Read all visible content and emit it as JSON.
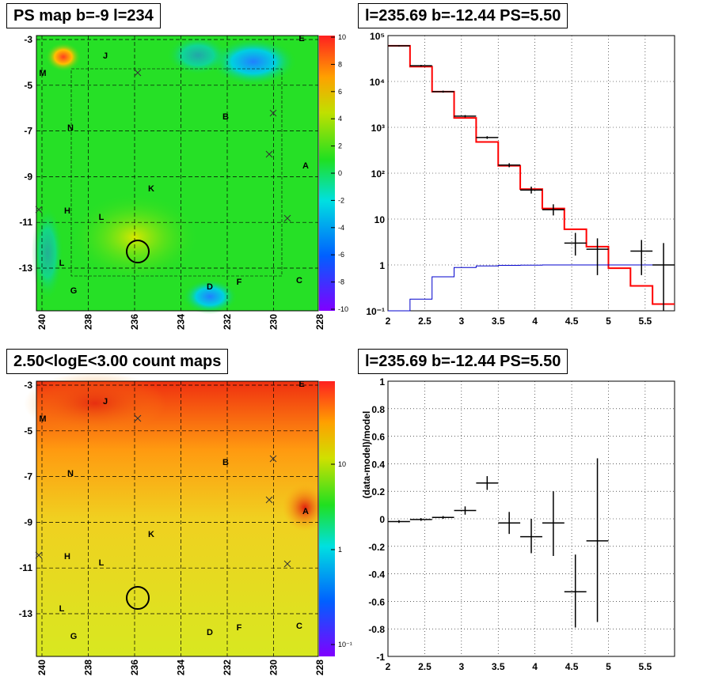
{
  "panels": {
    "tl_title": "PS map b=-9 l=234",
    "tr_title": "l=235.69 b=-12.44 PS=5.50",
    "bl_title": "2.50<logE<3.00 count maps",
    "br_title": "l=235.69 b=-12.44 PS=5.50"
  },
  "maps": {
    "x_ticks": [
      "240",
      "238",
      "236",
      "234",
      "232",
      "230",
      "228"
    ],
    "y_ticks": [
      "-3",
      "-5",
      "-7",
      "-9",
      "-11",
      "-13"
    ],
    "source_labels": [
      "E",
      "J",
      "M",
      "B",
      "N",
      "A",
      "K",
      "H",
      "L",
      "L",
      "G",
      "D",
      "F",
      "C"
    ],
    "ps_colorbar_ticks": [
      "10",
      "8",
      "6",
      "4",
      "2",
      "0",
      "-2",
      "-4",
      "-6",
      "-8",
      "-10"
    ],
    "count_colorbar_ticks": [
      "10",
      "1",
      "10⁻¹"
    ],
    "colors": {
      "ps_background": "#22dd22",
      "count_background": "#eedd22",
      "circle": "#000000"
    }
  },
  "chart_data": [
    {
      "type": "line",
      "title": "l=235.69 b=-12.44 PS=5.50",
      "xlim": [
        2,
        5.9
      ],
      "ylim": [
        0.1,
        100000
      ],
      "yscale": "log",
      "x_ticks": [
        "2",
        "2.5",
        "3",
        "3.5",
        "4",
        "4.5",
        "5",
        "5.5"
      ],
      "y_ticks": [
        "10⁵",
        "10⁴",
        "10³",
        "10²",
        "10",
        "1",
        "10⁻¹"
      ],
      "series": [
        {
          "color": "#ff0000",
          "kind": "step",
          "edges": [
            2,
            2.3,
            2.6,
            2.9,
            3.2,
            3.5,
            3.8,
            4.1,
            4.4,
            4.7,
            5.0,
            5.3,
            5.6,
            5.9
          ],
          "values": [
            60000,
            21000,
            6000,
            1600,
            480,
            145,
            45,
            17,
            6,
            2.5,
            0.85,
            0.35,
            0.14
          ]
        },
        {
          "color": "#0000cc",
          "kind": "step",
          "edges": [
            2,
            2.3,
            2.6,
            2.9,
            3.2,
            3.5,
            3.8,
            4.1,
            4.4,
            4.7,
            5.0,
            5.3,
            5.6,
            5.9
          ],
          "values": [
            0.1,
            0.18,
            0.55,
            0.88,
            0.95,
            0.98,
            0.99,
            1.0,
            1.0,
            1.0,
            1.0,
            1.0,
            1.0
          ]
        },
        {
          "color": "#000000",
          "kind": "errorbar",
          "points": [
            {
              "x": 2.15,
              "y": 60000,
              "xerr": 0.15,
              "ylo": 58000,
              "yhi": 62000
            },
            {
              "x": 2.45,
              "y": 22000,
              "xerr": 0.15,
              "ylo": 21000,
              "yhi": 23000
            },
            {
              "x": 2.75,
              "y": 6000,
              "xerr": 0.15,
              "ylo": 5700,
              "yhi": 6300
            },
            {
              "x": 3.05,
              "y": 1750,
              "xerr": 0.15,
              "ylo": 1650,
              "yhi": 1850
            },
            {
              "x": 3.35,
              "y": 600,
              "xerr": 0.15,
              "ylo": 560,
              "yhi": 640
            },
            {
              "x": 3.65,
              "y": 150,
              "xerr": 0.15,
              "ylo": 135,
              "yhi": 165
            },
            {
              "x": 3.95,
              "y": 43,
              "xerr": 0.15,
              "ylo": 36,
              "yhi": 51
            },
            {
              "x": 4.25,
              "y": 16,
              "xerr": 0.15,
              "ylo": 12,
              "yhi": 21
            },
            {
              "x": 4.55,
              "y": 3.0,
              "xerr": 0.15,
              "ylo": 1.6,
              "yhi": 5.0
            },
            {
              "x": 4.85,
              "y": 2.2,
              "xerr": 0.15,
              "ylo": 0.6,
              "yhi": 3.8
            },
            {
              "x": 5.45,
              "y": 2.0,
              "xerr": 0.15,
              "ylo": 0.6,
              "yhi": 3.5
            },
            {
              "x": 5.75,
              "y": 1.0,
              "xerr": 0.15,
              "ylo": 0.1,
              "yhi": 3.0
            }
          ]
        }
      ]
    },
    {
      "type": "scatter",
      "title": "l=235.69 b=-12.44 PS=5.50",
      "ylabel": "(data-model)/model",
      "xlim": [
        2,
        5.9
      ],
      "ylim": [
        -1,
        1
      ],
      "x_ticks": [
        "2",
        "2.5",
        "3",
        "3.5",
        "4",
        "4.5",
        "5",
        "5.5"
      ],
      "y_ticks": [
        "1",
        "0.8",
        "0.6",
        "0.4",
        "0.2",
        "0",
        "-0.2",
        "-0.4",
        "-0.6",
        "-0.8",
        "-1"
      ],
      "points": [
        {
          "x": 2.15,
          "y": -0.02,
          "xerr": 0.15,
          "ylo": -0.03,
          "yhi": -0.01
        },
        {
          "x": 2.45,
          "y": -0.005,
          "xerr": 0.15,
          "ylo": -0.015,
          "yhi": 0.005
        },
        {
          "x": 2.75,
          "y": 0.01,
          "xerr": 0.15,
          "ylo": 0.0,
          "yhi": 0.02
        },
        {
          "x": 3.05,
          "y": 0.06,
          "xerr": 0.15,
          "ylo": 0.03,
          "yhi": 0.09
        },
        {
          "x": 3.35,
          "y": 0.26,
          "xerr": 0.15,
          "ylo": 0.21,
          "yhi": 0.31
        },
        {
          "x": 3.65,
          "y": -0.03,
          "xerr": 0.15,
          "ylo": -0.11,
          "yhi": 0.05
        },
        {
          "x": 3.95,
          "y": -0.13,
          "xerr": 0.15,
          "ylo": -0.25,
          "yhi": 0.0
        },
        {
          "x": 4.25,
          "y": -0.03,
          "xerr": 0.15,
          "ylo": -0.27,
          "yhi": 0.2
        },
        {
          "x": 4.55,
          "y": -0.53,
          "xerr": 0.15,
          "ylo": -0.79,
          "yhi": -0.26
        },
        {
          "x": 4.85,
          "y": -0.16,
          "xerr": 0.15,
          "ylo": -0.75,
          "yhi": 0.44
        }
      ]
    }
  ]
}
